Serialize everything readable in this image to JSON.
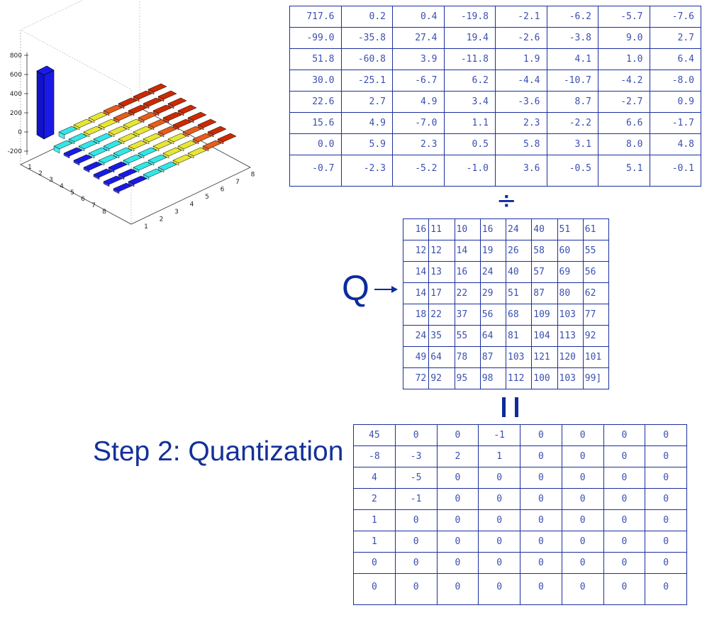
{
  "title": "Step 2: Quantization",
  "q_label": "Q",
  "operators": {
    "divide": "÷",
    "equals": "="
  },
  "dct_coefficients": [
    [
      "717.6",
      "0.2",
      "0.4",
      "-19.8",
      "-2.1",
      "-6.2",
      "-5.7",
      "-7.6"
    ],
    [
      "-99.0",
      "-35.8",
      "27.4",
      "19.4",
      "-2.6",
      "-3.8",
      "9.0",
      "2.7"
    ],
    [
      "51.8",
      "-60.8",
      "3.9",
      "-11.8",
      "1.9",
      "4.1",
      "1.0",
      "6.4"
    ],
    [
      "30.0",
      "-25.1",
      "-6.7",
      "6.2",
      "-4.4",
      "-10.7",
      "-4.2",
      "-8.0"
    ],
    [
      "22.6",
      "2.7",
      "4.9",
      "3.4",
      "-3.6",
      "8.7",
      "-2.7",
      "0.9"
    ],
    [
      "15.6",
      "4.9",
      "-7.0",
      "1.1",
      "2.3",
      "-2.2",
      "6.6",
      "-1.7"
    ],
    [
      "0.0",
      "5.9",
      "2.3",
      "0.5",
      "5.8",
      "3.1",
      "8.0",
      "4.8"
    ],
    [
      "-0.7",
      "-2.3",
      "-5.2",
      "-1.0",
      "3.6",
      "-0.5",
      "5.1",
      "-0.1"
    ]
  ],
  "quantization_matrix": [
    [
      "16",
      "11",
      "10",
      "16",
      "24",
      "40",
      "51",
      "61"
    ],
    [
      "12",
      "12",
      "14",
      "19",
      "26",
      "58",
      "60",
      "55"
    ],
    [
      "14",
      "13",
      "16",
      "24",
      "40",
      "57",
      "69",
      "56"
    ],
    [
      "14",
      "17",
      "22",
      "29",
      "51",
      "87",
      "80",
      "62"
    ],
    [
      "18",
      "22",
      "37",
      "56",
      "68",
      "109",
      "103",
      "77"
    ],
    [
      "24",
      "35",
      "55",
      "64",
      "81",
      "104",
      "113",
      "92"
    ],
    [
      "49",
      "64",
      "78",
      "87",
      "103",
      "121",
      "120",
      "101"
    ],
    [
      "72",
      "92",
      "95",
      "98",
      "112",
      "100",
      "103",
      "99]"
    ]
  ],
  "quantized_result": [
    [
      "45",
      "0",
      "0",
      "-1",
      "0",
      "0",
      "0",
      "0"
    ],
    [
      "-8",
      "-3",
      "2",
      "1",
      "0",
      "0",
      "0",
      "0"
    ],
    [
      "4",
      "-5",
      "0",
      "0",
      "0",
      "0",
      "0",
      "0"
    ],
    [
      "2",
      "-1",
      "0",
      "0",
      "0",
      "0",
      "0",
      "0"
    ],
    [
      "1",
      "0",
      "0",
      "0",
      "0",
      "0",
      "0",
      "0"
    ],
    [
      "1",
      "0",
      "0",
      "0",
      "0",
      "0",
      "0",
      "0"
    ],
    [
      "0",
      "0",
      "0",
      "0",
      "0",
      "0",
      "0",
      "0"
    ],
    [
      "0",
      "0",
      "0",
      "0",
      "0",
      "0",
      "0",
      "0"
    ]
  ],
  "chart_data": {
    "type": "bar3d",
    "zlabels": [
      "800",
      "600",
      "400",
      "200",
      "0",
      "-200"
    ],
    "row_ticks": [
      "1",
      "2",
      "3",
      "4",
      "5",
      "6",
      "7",
      "8"
    ],
    "col_ticks": [
      "1",
      "2",
      "3",
      "4",
      "5",
      "6",
      "7",
      "8"
    ],
    "colors": {
      "low": "#1a1ae6",
      "midlow": "#33e6e6",
      "mid": "#e6e633",
      "high": "#e65c1a",
      "top": "#cc2a00"
    }
  }
}
